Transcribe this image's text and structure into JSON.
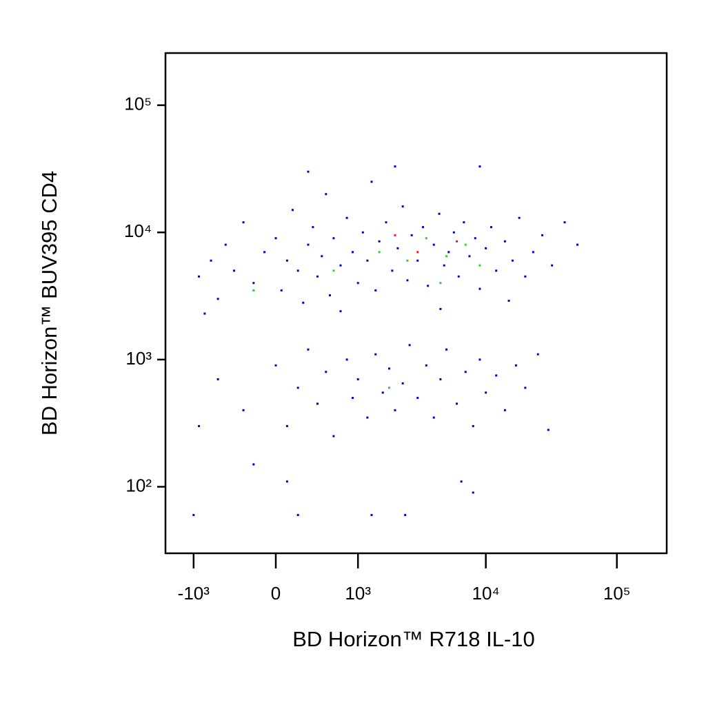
{
  "chart_data": {
    "type": "scatter",
    "xlabel": "BD Horizon™ R718 IL-10",
    "ylabel": "BD Horizon™ BUV395 CD4",
    "xscale": "biexponential",
    "yscale": "log",
    "xlim": [
      -1700,
      240000
    ],
    "ylim": [
      30,
      257000
    ],
    "xticks": [
      {
        "value": -1000,
        "label": "-10³"
      },
      0,
      {
        "value": 1000,
        "label": "10³"
      },
      {
        "value": 10000,
        "label": "10⁴"
      },
      {
        "value": 100000,
        "label": "10⁵"
      }
    ],
    "yticks": [
      {
        "value": 100,
        "label": "10²"
      },
      {
        "value": 1000,
        "label": "10³"
      },
      {
        "value": 10000,
        "label": "10⁴"
      },
      {
        "value": 100000,
        "label": "10⁵"
      }
    ],
    "series": [
      {
        "color": "#0000c8",
        "x": [
          -900,
          -700,
          -600,
          -500,
          -400,
          -300,
          -200,
          -100,
          0,
          50,
          100,
          150,
          200,
          250,
          300,
          350,
          400,
          450,
          500,
          550,
          600,
          700,
          800,
          900,
          1000,
          1100,
          1200,
          1300,
          1400,
          1500,
          1700,
          1900,
          2100,
          2300,
          2500,
          2700,
          3000,
          3300,
          3600,
          4000,
          4400,
          4800,
          5200,
          5700,
          6200,
          6800,
          7500,
          8300,
          9000,
          10000,
          11000,
          12000,
          14000,
          16000,
          18000,
          20000,
          23000,
          27000,
          32000,
          40000,
          50000,
          -800,
          300,
          2000,
          9000,
          700,
          4500,
          15000,
          -600,
          -300,
          -200,
          0,
          100,
          200,
          300,
          400,
          500,
          600,
          800,
          900,
          1000,
          1200,
          1400,
          1600,
          1800,
          2000,
          2300,
          2600,
          3000,
          3500,
          4000,
          4500,
          5000,
          6000,
          7000,
          8000,
          9000,
          10000,
          12000,
          14000,
          17000,
          20000,
          25000,
          30000,
          -900,
          200,
          1300,
          2400,
          100,
          6500,
          8000,
          -1000
        ],
        "y": [
          4500,
          6000,
          3000,
          8000,
          5000,
          12000,
          4000,
          7000,
          9000,
          3500,
          6000,
          15000,
          5000,
          2800,
          8000,
          11000,
          4500,
          6500,
          20000,
          3200,
          9000,
          5500,
          13000,
          7000,
          4000,
          10000,
          6000,
          25000,
          3500,
          8500,
          12000,
          5000,
          7500,
          16000,
          4200,
          9500,
          6000,
          11000,
          3800,
          8000,
          14000,
          5500,
          7000,
          10000,
          4500,
          12000,
          6500,
          9000,
          3600,
          7500,
          11000,
          5000,
          8500,
          6000,
          13000,
          4500,
          7000,
          9500,
          5500,
          12000,
          8000,
          2300,
          30000,
          33000,
          33000,
          2400,
          2500,
          2900,
          700,
          400,
          150,
          900,
          300,
          600,
          1200,
          450,
          800,
          250,
          1000,
          500,
          700,
          350,
          1100,
          550,
          850,
          400,
          650,
          1300,
          500,
          900,
          350,
          700,
          1200,
          450,
          800,
          300,
          1000,
          550,
          750,
          400,
          900,
          600,
          1100,
          280,
          300,
          60,
          60,
          60,
          110,
          110,
          90,
          60
        ]
      },
      {
        "color": "#33cc33",
        "x": [
          600,
          1500,
          2500,
          3500,
          5000,
          7000,
          1800,
          4500,
          9000,
          -200
        ],
        "y": [
          5000,
          7000,
          6000,
          9000,
          6500,
          8000,
          600,
          4000,
          5500,
          3500
        ]
      },
      {
        "color": "#e02020",
        "x": [
          3000,
          6000,
          2000
        ],
        "y": [
          7000,
          8500,
          9500
        ]
      }
    ]
  }
}
